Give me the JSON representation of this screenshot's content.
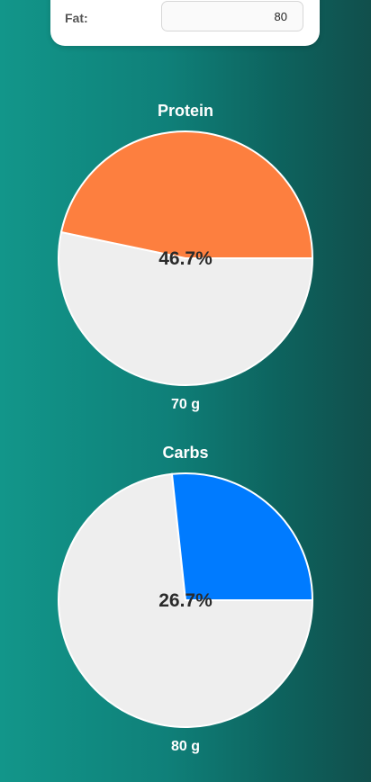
{
  "fat": {
    "label": "Fat:",
    "value": "80"
  },
  "colors": {
    "protein": "#fd7f3f",
    "carbs": "#007bff",
    "remainder": "#eeeeee"
  },
  "chart_data": [
    {
      "type": "pie",
      "title": "Protein",
      "percent_label": "46.7%",
      "percent": 46.7,
      "amount_label": "70 g",
      "slices": [
        {
          "label": "",
          "value": 46.7,
          "color": "#fd7f3f"
        },
        {
          "label": "",
          "value": 53.3,
          "color": "#eeeeee"
        }
      ]
    },
    {
      "type": "pie",
      "title": "Carbs",
      "percent_label": "26.7%",
      "percent": 26.7,
      "amount_label": "80 g",
      "slices": [
        {
          "label": "",
          "value": 26.7,
          "color": "#007bff"
        },
        {
          "label": "",
          "value": 73.3,
          "color": "#eeeeee"
        }
      ]
    }
  ]
}
